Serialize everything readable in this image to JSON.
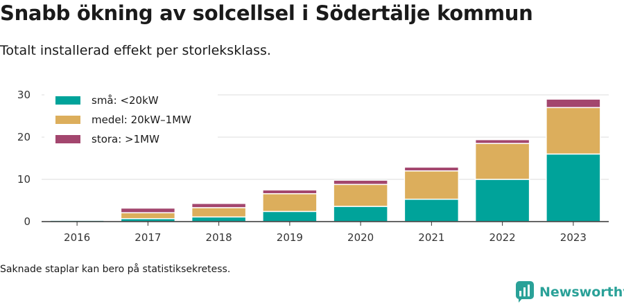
{
  "header": {
    "title": "Snabb ökning av solcellsel i Södertälje kommun",
    "subtitle": "Totalt installerad effekt per storleksklass."
  },
  "footer": {
    "note": "Saknade staplar kan bero på statistiksekretess.",
    "brand": "Newsworthy"
  },
  "colors": {
    "sma": "#00a39a",
    "medel": "#dcae5c",
    "stora": "#a3466e",
    "brand": "#2aa198"
  },
  "chart_data": {
    "type": "bar",
    "stacked": true,
    "categories": [
      "2016",
      "2017",
      "2018",
      "2019",
      "2020",
      "2021",
      "2022",
      "2023"
    ],
    "series": [
      {
        "name": "små: <20kW",
        "color": "#00a39a",
        "values": [
          0.3,
          0.7,
          1.1,
          2.4,
          3.6,
          5.3,
          10.0,
          16.0
        ]
      },
      {
        "name": "medel: 20kW–1MW",
        "color": "#dcae5c",
        "values": [
          0,
          1.4,
          2.2,
          4.2,
          5.2,
          6.7,
          8.5,
          11.0
        ]
      },
      {
        "name": "stora: >1MW",
        "color": "#a3466e",
        "values": [
          0,
          1.1,
          1.0,
          0.9,
          1.0,
          0.9,
          0.9,
          2.0
        ]
      }
    ],
    "ylim": [
      0,
      30
    ],
    "yticks": [
      0,
      10,
      20,
      30
    ],
    "grid": true,
    "legend": "top-left"
  }
}
